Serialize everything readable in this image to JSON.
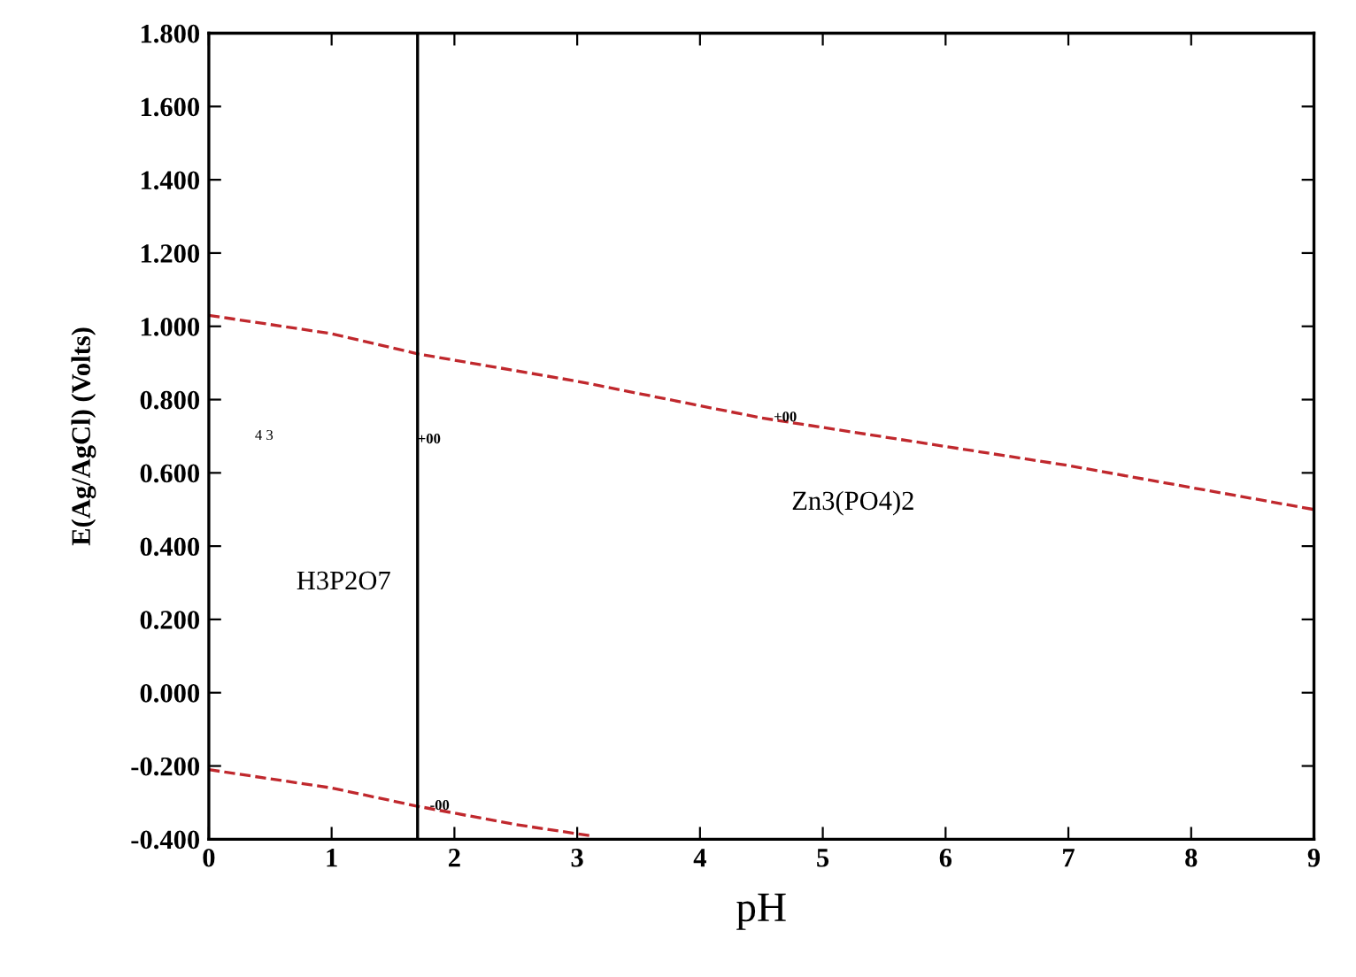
{
  "chart_data": {
    "type": "line",
    "xlabel": "pH",
    "ylabel": "E(Ag/AgCl) (Volts)",
    "xlim": [
      0,
      9
    ],
    "ylim": [
      -0.4,
      1.8
    ],
    "xticks": [
      0,
      1,
      2,
      3,
      4,
      5,
      6,
      7,
      8,
      9
    ],
    "yticks": [
      {
        "value": -0.4,
        "label": "-0.400"
      },
      {
        "value": -0.2,
        "label": "-0.200"
      },
      {
        "value": 0,
        "label": "0.000"
      },
      {
        "value": 0.2,
        "label": "0.200"
      },
      {
        "value": 0.4,
        "label": "0.400"
      },
      {
        "value": 0.6,
        "label": "0.600"
      },
      {
        "value": 0.8,
        "label": "0.800"
      },
      {
        "value": 1.0,
        "label": "1.000"
      },
      {
        "value": 1.2,
        "label": "1.200"
      },
      {
        "value": 1.4,
        "label": "1.400"
      },
      {
        "value": 1.6,
        "label": "1.600"
      },
      {
        "value": 1.8,
        "label": "1.800"
      }
    ],
    "grid": false,
    "marker": "none",
    "line_style": "dashed",
    "series": [
      {
        "color": "#c0282d",
        "x": [
          0,
          1,
          1.7,
          3,
          3.9,
          4.5,
          7,
          9
        ],
        "values": [
          1.03,
          0.98,
          0.925,
          0.85,
          0.79,
          0.75,
          0.62,
          0.5
        ]
      },
      {
        "color": "#c0282d",
        "x": [
          0,
          0.5,
          1,
          1.7,
          2.5,
          3.1
        ],
        "values": [
          -0.21,
          -0.235,
          -0.26,
          -0.31,
          -0.36,
          -0.39
        ]
      }
    ],
    "ref_lines": [
      {
        "axis": "x",
        "value": 1.7,
        "color": "#000000",
        "line_style": "solid"
      }
    ],
    "annotations": [
      "H3P2O7",
      "Zn3(PO4)2",
      "4 3",
      {
        "text": "+00",
        "x": 1.7,
        "y": 0.69
      },
      {
        "text": "+00",
        "x": 4.6,
        "y": 0.75
      },
      {
        "text": "-00",
        "x": 1.8,
        "y": -0.31
      }
    ]
  }
}
